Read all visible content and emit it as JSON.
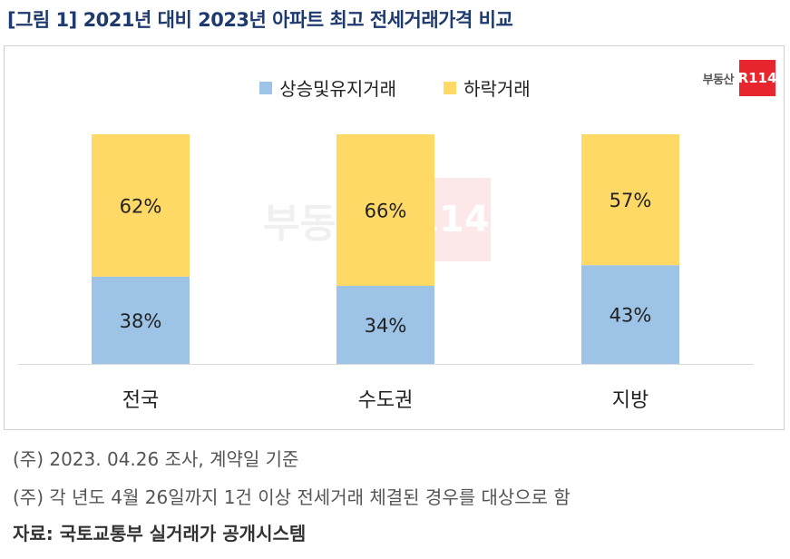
{
  "title": "[그림 1] 2021년 대비 2023년 아파트 최고 전세거래가격 비교",
  "logo": {
    "text": "부동산",
    "box": "R114"
  },
  "watermark": {
    "text": "부동산",
    "box": "R114"
  },
  "notes": [
    "(주) 2023. 04.26 조사, 계약일 기준",
    "(주) 각 년도 4월 26일까지 1건 이상 전세거래 체결된 경우를 대상으로 함"
  ],
  "source": "자료: 국토교통부 실거래가 공개시스템",
  "colors": {
    "rise": "#9dc3e6",
    "fall": "#ffd966",
    "title": "#1f3a6e",
    "brand": "#e8262d"
  },
  "chart_data": {
    "type": "bar",
    "stacked": true,
    "categories": [
      "전국",
      "수도권",
      "지방"
    ],
    "series": [
      {
        "name": "상승및유지거래",
        "values": [
          38,
          34,
          43
        ],
        "labels": [
          "38%",
          "34%",
          "43%"
        ]
      },
      {
        "name": "하락거래",
        "values": [
          62,
          66,
          57
        ],
        "labels": [
          "62%",
          "66%",
          "57%"
        ]
      }
    ],
    "ylim": [
      0,
      100
    ],
    "unit": "%",
    "legend": "top-center",
    "grid": false
  }
}
